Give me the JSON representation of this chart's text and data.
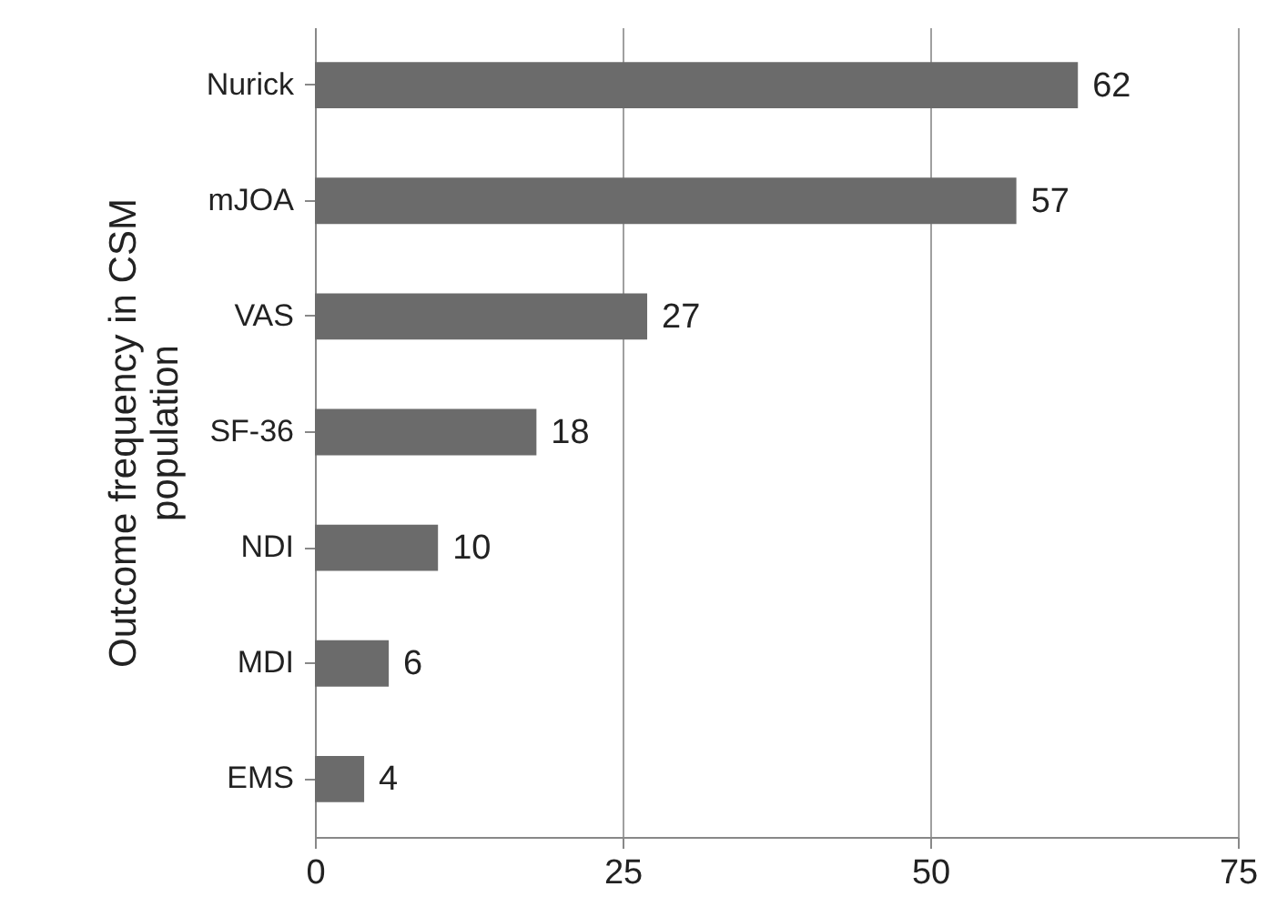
{
  "chart_data": {
    "type": "bar",
    "orientation": "horizontal",
    "ylabel": "Outcome frequency in CSM population",
    "categories": [
      "Nurick",
      "mJOA",
      "VAS",
      "SF-36",
      "NDI",
      "MDI",
      "EMS"
    ],
    "values": [
      62,
      57,
      27,
      18,
      10,
      6,
      4
    ],
    "color": "#6b6b6b",
    "xlim": [
      0,
      75
    ],
    "xticks": [
      0,
      25,
      50,
      75
    ],
    "grid": "x",
    "data_labels": true
  }
}
